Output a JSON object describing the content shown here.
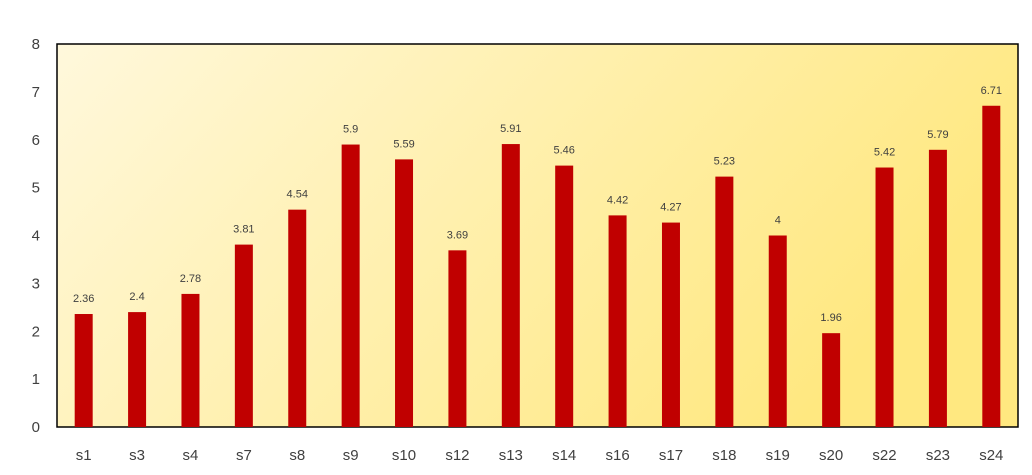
{
  "chart_data": {
    "type": "bar",
    "categories": [
      "s1",
      "s3",
      "s4",
      "s7",
      "s8",
      "s9",
      "s10",
      "s12",
      "s13",
      "s14",
      "s16",
      "s17",
      "s18",
      "s19",
      "s20",
      "s22",
      "s23",
      "s24"
    ],
    "values": [
      2.36,
      2.4,
      2.78,
      3.81,
      4.54,
      5.9,
      5.59,
      3.69,
      5.91,
      5.46,
      4.42,
      4.27,
      5.23,
      4,
      1.96,
      5.42,
      5.79,
      6.71
    ],
    "data_labels": [
      "2.36",
      "2.4",
      "2.78",
      "3.81",
      "4.54",
      "5.9",
      "5.59",
      "3.69",
      "5.91",
      "5.46",
      "4.42",
      "4.27",
      "5.23",
      "4",
      "1.96",
      "5.42",
      "5.79",
      "6.71"
    ],
    "title": "",
    "xlabel": "",
    "ylabel": "",
    "ylim": [
      0,
      8
    ],
    "yticks": [
      "0",
      "1",
      "2",
      "3",
      "4",
      "5",
      "6",
      "7",
      "8"
    ],
    "grid": false,
    "legend": "none",
    "colors": {
      "bar": "#c00000",
      "plot_background_start": "#fff8dc",
      "plot_background_end": "#ffe880",
      "frame": "#000000",
      "text": "#404040"
    }
  }
}
